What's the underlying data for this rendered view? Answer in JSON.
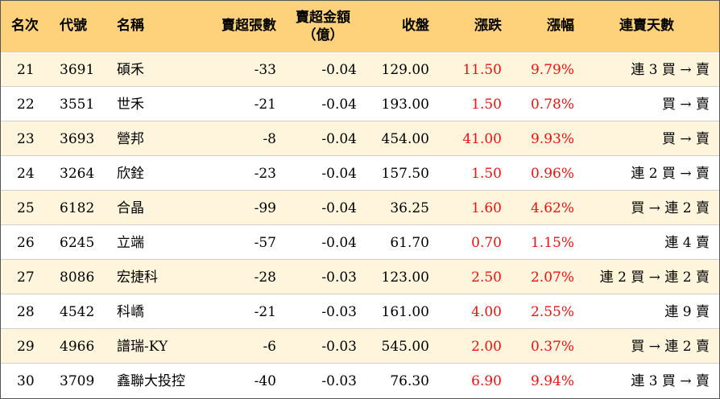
{
  "headers": {
    "rank": "名次",
    "code": "代號",
    "name": "名稱",
    "net_sell_lots": "賣超張數",
    "net_sell_amount_line1": "賣超金額",
    "net_sell_amount_line2": "（億）",
    "close": "收盤",
    "change": "漲跌",
    "change_pct": "漲幅",
    "sell_days": "連賣天數"
  },
  "rows": [
    {
      "rank": "21",
      "code": "3691",
      "name": "碩禾",
      "lots": "-33",
      "amount": "-0.04",
      "close": "129.00",
      "change": "11.50",
      "pct": "9.79%",
      "streak": "連 3 買 → 賣"
    },
    {
      "rank": "22",
      "code": "3551",
      "name": "世禾",
      "lots": "-21",
      "amount": "-0.04",
      "close": "193.00",
      "change": "1.50",
      "pct": "0.78%",
      "streak": "買 → 賣"
    },
    {
      "rank": "23",
      "code": "3693",
      "name": "營邦",
      "lots": "-8",
      "amount": "-0.04",
      "close": "454.00",
      "change": "41.00",
      "pct": "9.93%",
      "streak": "買 → 賣"
    },
    {
      "rank": "24",
      "code": "3264",
      "name": "欣銓",
      "lots": "-23",
      "amount": "-0.04",
      "close": "157.50",
      "change": "1.50",
      "pct": "0.96%",
      "streak": "連 2 買 → 賣"
    },
    {
      "rank": "25",
      "code": "6182",
      "name": "合晶",
      "lots": "-99",
      "amount": "-0.04",
      "close": "36.25",
      "change": "1.60",
      "pct": "4.62%",
      "streak": "買 → 連 2 賣"
    },
    {
      "rank": "26",
      "code": "6245",
      "name": "立端",
      "lots": "-57",
      "amount": "-0.04",
      "close": "61.70",
      "change": "0.70",
      "pct": "1.15%",
      "streak": "連 4 賣"
    },
    {
      "rank": "27",
      "code": "8086",
      "name": "宏捷科",
      "lots": "-28",
      "amount": "-0.03",
      "close": "123.00",
      "change": "2.50",
      "pct": "2.07%",
      "streak": "連 2 買 → 連 2 賣"
    },
    {
      "rank": "28",
      "code": "4542",
      "name": "科嶠",
      "lots": "-21",
      "amount": "-0.03",
      "close": "161.00",
      "change": "4.00",
      "pct": "2.55%",
      "streak": "連 9 賣"
    },
    {
      "rank": "29",
      "code": "4966",
      "name": "譜瑞-KY",
      "lots": "-6",
      "amount": "-0.03",
      "close": "545.00",
      "change": "2.00",
      "pct": "0.37%",
      "streak": "買 → 連 2 賣"
    },
    {
      "rank": "30",
      "code": "3709",
      "name": "鑫聯大投控",
      "lots": "-40",
      "amount": "-0.03",
      "close": "76.30",
      "change": "6.90",
      "pct": "9.94%",
      "streak": "連 3 買 → 賣"
    }
  ],
  "colors": {
    "header_bg": "#fdd27a",
    "odd_row_bg": "#fff5dc",
    "even_row_bg": "#ffffff",
    "positive": "#ee1111",
    "border": "#555555"
  }
}
